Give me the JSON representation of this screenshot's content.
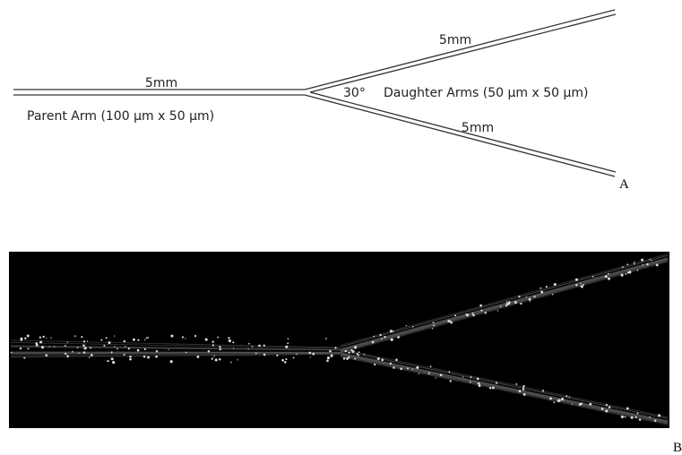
{
  "panel_a": {
    "label": "A",
    "parent_length": "5mm",
    "parent_label": "Parent Arm (100 µm x 50 µm)",
    "angle": "30°",
    "daughter_label": "Daughter Arms (50 µm x 50 µm)",
    "upper_length": "5mm",
    "lower_length": "5mm"
  },
  "panel_b": {
    "label": "B"
  }
}
